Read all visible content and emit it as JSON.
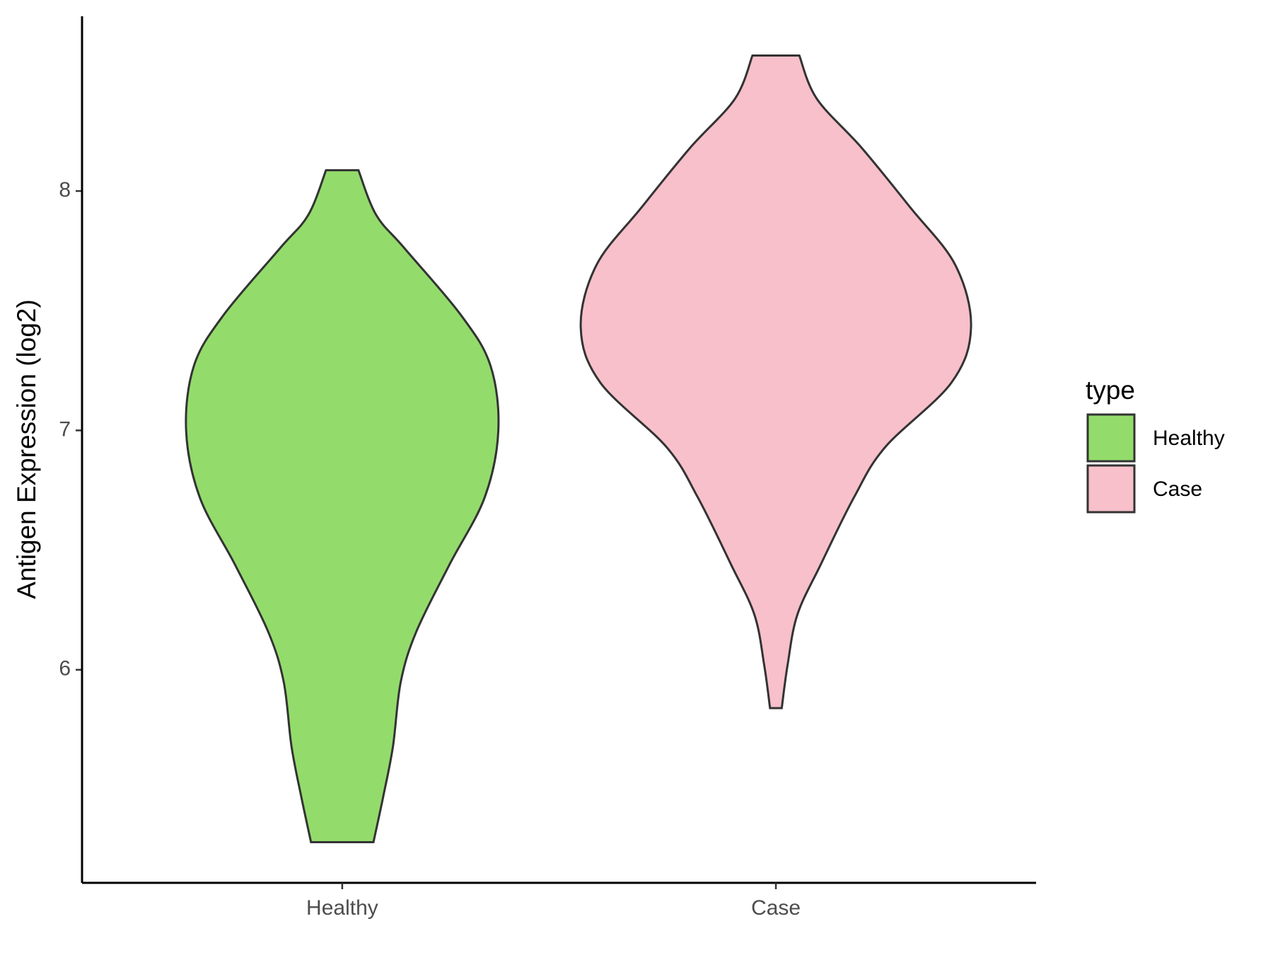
{
  "chart_data": {
    "type": "violin",
    "y_label": "Antigen Expression (log2)",
    "legend_title": "type",
    "legend_position": "right",
    "categories": [
      "Healthy",
      "Case"
    ],
    "ylim": [
      5.11,
      8.73
    ],
    "yticks": [
      6,
      7,
      8
    ],
    "series": [
      {
        "name": "Healthy",
        "color": "#93dc6b",
        "y": [
          8.087,
          7.9,
          7.76,
          7.48,
          7.27,
          7.0,
          6.72,
          6.44,
          6.16,
          5.95,
          5.68,
          5.47,
          5.28
        ],
        "density": [
          0.083,
          0.174,
          0.32,
          0.61,
          0.76,
          0.8,
          0.73,
          0.55,
          0.38,
          0.3,
          0.26,
          0.21,
          0.16
        ]
      },
      {
        "name": "Case",
        "color": "#f7c0cb",
        "y": [
          8.566,
          8.385,
          8.18,
          7.93,
          7.69,
          7.43,
          7.2,
          6.93,
          6.72,
          6.44,
          6.23,
          6.02,
          5.84
        ],
        "density": [
          0.12,
          0.21,
          0.44,
          0.69,
          0.92,
          1.0,
          0.9,
          0.56,
          0.4,
          0.23,
          0.11,
          0.06,
          0.03
        ]
      }
    ]
  }
}
